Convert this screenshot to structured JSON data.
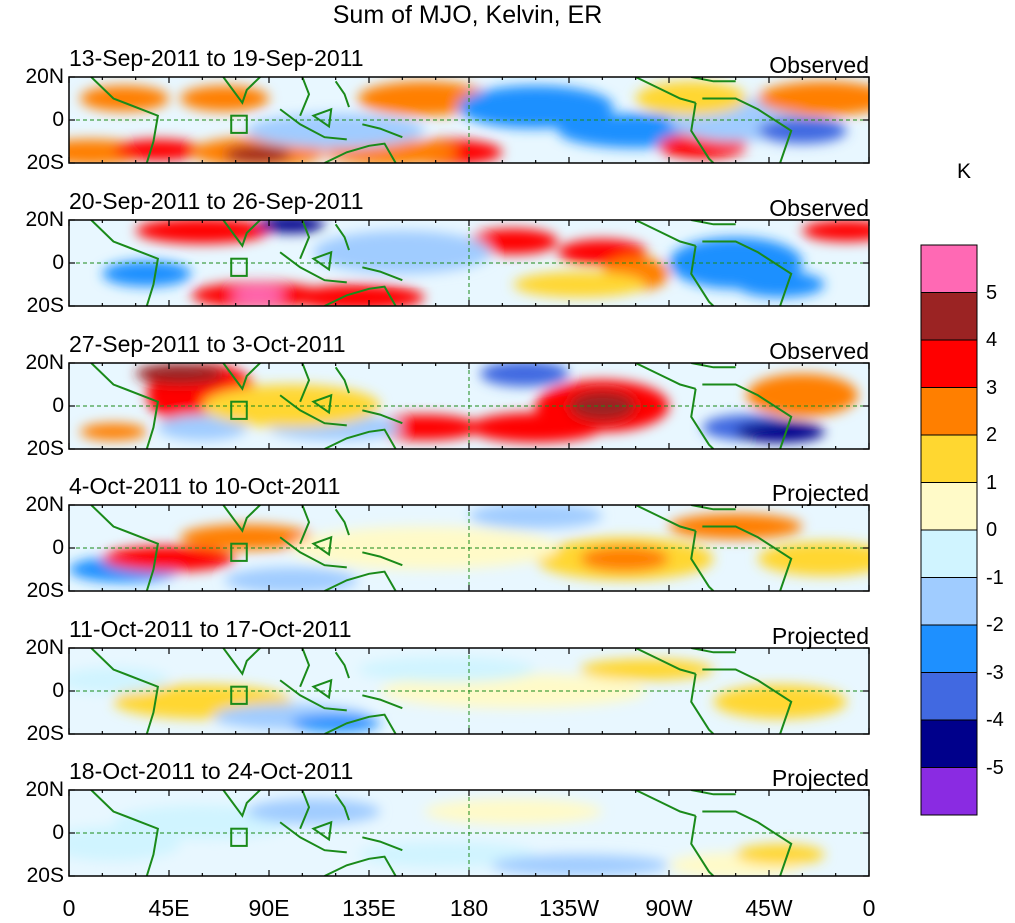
{
  "title": "Sum of MJO, Kelvin, ER",
  "lat_ticks": [
    "20N",
    "0",
    "20S"
  ],
  "lon_ticks": [
    "0",
    "45E",
    "90E",
    "135E",
    "180",
    "135W",
    "90W",
    "45W",
    "0"
  ],
  "unit": "K",
  "colorbar": {
    "levels": [
      "5",
      "4",
      "3",
      "2",
      "1",
      "0",
      "-1",
      "-2",
      "-3",
      "-4",
      "-5"
    ],
    "colors": [
      "#ff69b4",
      "#9b2323",
      "#ff0000",
      "#ff7f00",
      "#ffd730",
      "#fffac8",
      "#d0f4ff",
      "#a0ccff",
      "#1e90ff",
      "#4169e1",
      "#00008b",
      "#8a2be2"
    ]
  },
  "panels": [
    {
      "date_range": "13-Sep-2011 to 19-Sep-2011",
      "status": "Observed"
    },
    {
      "date_range": "20-Sep-2011 to 26-Sep-2011",
      "status": "Observed"
    },
    {
      "date_range": "27-Sep-2011 to 3-Oct-2011",
      "status": "Observed"
    },
    {
      "date_range": "4-Oct-2011 to 10-Oct-2011",
      "status": "Projected"
    },
    {
      "date_range": "11-Oct-2011 to 17-Oct-2011",
      "status": "Projected"
    },
    {
      "date_range": "18-Oct-2011 to 24-Oct-2011",
      "status": "Projected"
    }
  ]
}
